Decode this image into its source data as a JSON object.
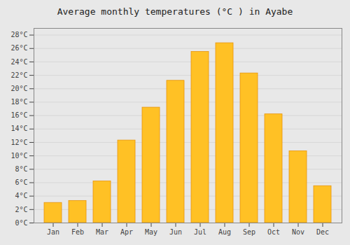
{
  "chart_data": {
    "type": "bar",
    "title": "Average monthly temperatures (°C ) in Ayabe",
    "categories": [
      "Jan",
      "Feb",
      "Mar",
      "Apr",
      "May",
      "Jun",
      "Jul",
      "Aug",
      "Sep",
      "Oct",
      "Nov",
      "Dec"
    ],
    "values": [
      3.0,
      3.3,
      6.2,
      12.3,
      17.2,
      21.2,
      25.5,
      26.8,
      22.3,
      16.2,
      10.7,
      5.5
    ],
    "color": "#FFC125",
    "ylim": [
      0,
      29
    ],
    "yticks": [
      {
        "value": 0,
        "label": "0°C"
      },
      {
        "value": 2,
        "label": "2°C"
      },
      {
        "value": 4,
        "label": "4°C"
      },
      {
        "value": 6,
        "label": "6°C"
      },
      {
        "value": 8,
        "label": "8°C"
      },
      {
        "value": 10,
        "label": "10°C"
      },
      {
        "value": 12,
        "label": "12°C"
      },
      {
        "value": 14,
        "label": "14°C"
      },
      {
        "value": 16,
        "label": "16°C"
      },
      {
        "value": 18,
        "label": "18°C"
      },
      {
        "value": 20,
        "label": "20°C"
      },
      {
        "value": 22,
        "label": "22°C"
      },
      {
        "value": 24,
        "label": "24°C"
      },
      {
        "value": 26,
        "label": "26°C"
      },
      {
        "value": 28,
        "label": "28°C"
      }
    ],
    "grid": true
  }
}
